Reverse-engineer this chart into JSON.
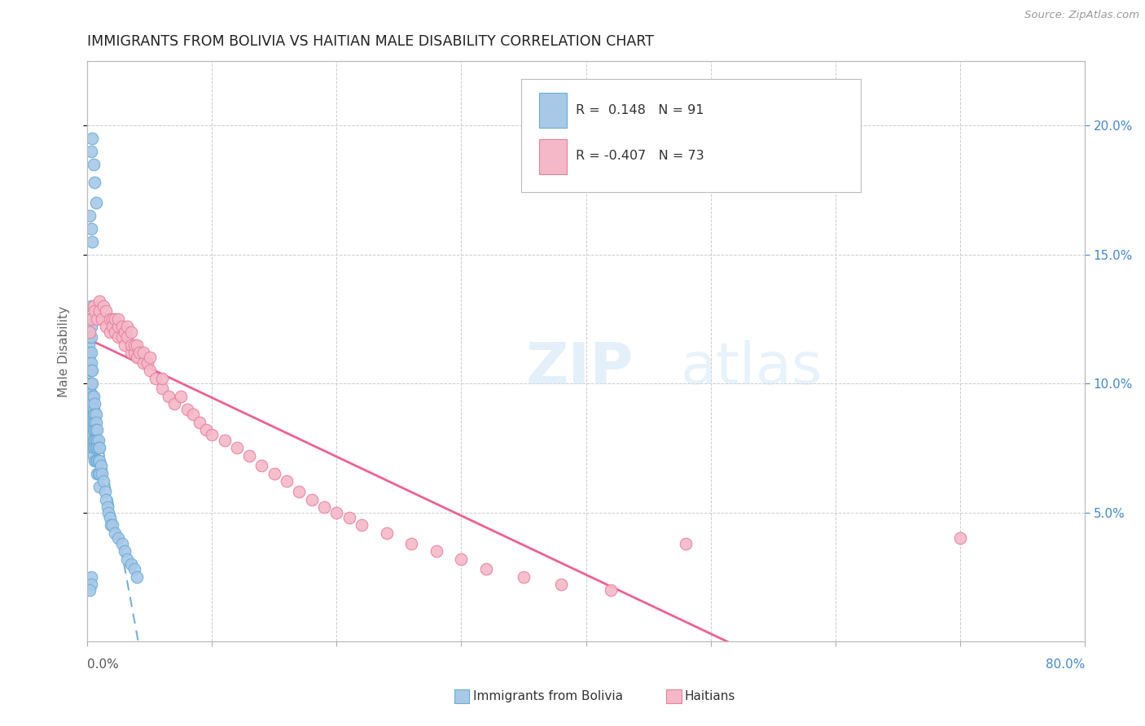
{
  "title": "IMMIGRANTS FROM BOLIVIA VS HAITIAN MALE DISABILITY CORRELATION CHART",
  "source": "Source: ZipAtlas.com",
  "ylabel": "Male Disability",
  "right_yticks": [
    0.05,
    0.1,
    0.15,
    0.2
  ],
  "right_yticklabels": [
    "5.0%",
    "10.0%",
    "15.0%",
    "20.0%"
  ],
  "xlim": [
    0.0,
    0.8
  ],
  "ylim": [
    0.0,
    0.225
  ],
  "watermark_zip": "ZIP",
  "watermark_atlas": "atlas",
  "blue_color": "#a8c8e8",
  "blue_edge": "#6aadd5",
  "pink_color": "#f4b8c8",
  "pink_edge": "#e87fa0",
  "trend_blue_color": "#7ab0d4",
  "trend_pink_color": "#f06090",
  "bolivia_x": [
    0.001,
    0.001,
    0.002,
    0.002,
    0.002,
    0.002,
    0.002,
    0.002,
    0.002,
    0.002,
    0.003,
    0.003,
    0.003,
    0.003,
    0.003,
    0.003,
    0.003,
    0.003,
    0.003,
    0.003,
    0.004,
    0.004,
    0.004,
    0.004,
    0.004,
    0.004,
    0.004,
    0.004,
    0.004,
    0.005,
    0.005,
    0.005,
    0.005,
    0.005,
    0.005,
    0.005,
    0.005,
    0.006,
    0.006,
    0.006,
    0.006,
    0.006,
    0.006,
    0.006,
    0.007,
    0.007,
    0.007,
    0.007,
    0.007,
    0.007,
    0.008,
    0.008,
    0.008,
    0.008,
    0.008,
    0.009,
    0.009,
    0.009,
    0.009,
    0.01,
    0.01,
    0.01,
    0.01,
    0.011,
    0.012,
    0.013,
    0.014,
    0.015,
    0.016,
    0.017,
    0.018,
    0.019,
    0.02,
    0.022,
    0.025,
    0.028,
    0.03,
    0.032,
    0.035,
    0.038,
    0.04,
    0.003,
    0.004,
    0.005,
    0.006,
    0.007,
    0.002,
    0.003,
    0.004,
    0.003,
    0.003,
    0.002
  ],
  "bolivia_y": [
    0.115,
    0.11,
    0.125,
    0.118,
    0.112,
    0.108,
    0.105,
    0.1,
    0.098,
    0.095,
    0.13,
    0.122,
    0.118,
    0.112,
    0.108,
    0.105,
    0.1,
    0.096,
    0.092,
    0.088,
    0.105,
    0.1,
    0.095,
    0.092,
    0.088,
    0.085,
    0.082,
    0.078,
    0.075,
    0.095,
    0.09,
    0.088,
    0.085,
    0.082,
    0.078,
    0.075,
    0.072,
    0.092,
    0.088,
    0.085,
    0.082,
    0.078,
    0.075,
    0.07,
    0.088,
    0.085,
    0.082,
    0.078,
    0.075,
    0.07,
    0.082,
    0.078,
    0.075,
    0.07,
    0.065,
    0.078,
    0.075,
    0.07,
    0.065,
    0.075,
    0.07,
    0.065,
    0.06,
    0.068,
    0.065,
    0.062,
    0.058,
    0.055,
    0.052,
    0.05,
    0.048,
    0.045,
    0.045,
    0.042,
    0.04,
    0.038,
    0.035,
    0.032,
    0.03,
    0.028,
    0.025,
    0.19,
    0.195,
    0.185,
    0.178,
    0.17,
    0.165,
    0.16,
    0.155,
    0.025,
    0.022,
    0.02
  ],
  "haiti_x": [
    0.002,
    0.003,
    0.005,
    0.006,
    0.008,
    0.01,
    0.01,
    0.012,
    0.013,
    0.015,
    0.015,
    0.018,
    0.018,
    0.02,
    0.02,
    0.022,
    0.022,
    0.025,
    0.025,
    0.025,
    0.028,
    0.028,
    0.03,
    0.03,
    0.032,
    0.032,
    0.035,
    0.035,
    0.035,
    0.038,
    0.038,
    0.04,
    0.04,
    0.042,
    0.045,
    0.045,
    0.048,
    0.05,
    0.05,
    0.055,
    0.06,
    0.06,
    0.065,
    0.07,
    0.075,
    0.08,
    0.085,
    0.09,
    0.095,
    0.1,
    0.11,
    0.12,
    0.13,
    0.14,
    0.15,
    0.16,
    0.17,
    0.18,
    0.19,
    0.2,
    0.21,
    0.22,
    0.24,
    0.26,
    0.28,
    0.3,
    0.32,
    0.35,
    0.38,
    0.42,
    0.48,
    0.7
  ],
  "haiti_y": [
    0.12,
    0.125,
    0.13,
    0.128,
    0.125,
    0.132,
    0.128,
    0.125,
    0.13,
    0.128,
    0.122,
    0.125,
    0.12,
    0.125,
    0.122,
    0.12,
    0.125,
    0.118,
    0.122,
    0.125,
    0.118,
    0.122,
    0.12,
    0.115,
    0.118,
    0.122,
    0.112,
    0.115,
    0.12,
    0.112,
    0.115,
    0.11,
    0.115,
    0.112,
    0.108,
    0.112,
    0.108,
    0.105,
    0.11,
    0.102,
    0.098,
    0.102,
    0.095,
    0.092,
    0.095,
    0.09,
    0.088,
    0.085,
    0.082,
    0.08,
    0.078,
    0.075,
    0.072,
    0.068,
    0.065,
    0.062,
    0.058,
    0.055,
    0.052,
    0.05,
    0.048,
    0.045,
    0.042,
    0.038,
    0.035,
    0.032,
    0.028,
    0.025,
    0.022,
    0.02,
    0.038,
    0.04
  ]
}
